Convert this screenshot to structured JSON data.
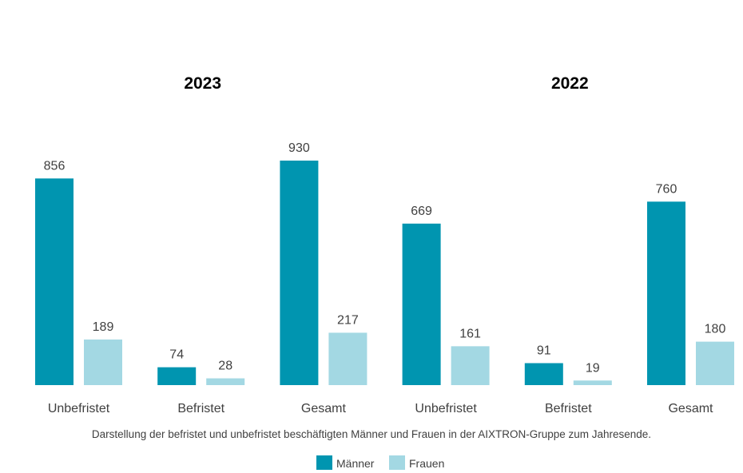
{
  "chart_data": {
    "type": "bar",
    "groups": [
      "2023",
      "2022"
    ],
    "categories": [
      "Unbefristet",
      "Befristet",
      "Gesamt",
      "Unbefristet",
      "Befristet",
      "Gesamt"
    ],
    "series": [
      {
        "name": "Männer",
        "color": "#0095B0",
        "values": [
          856,
          74,
          930,
          669,
          91,
          760
        ]
      },
      {
        "name": "Frauen",
        "color": "#A3D8E3",
        "values": [
          189,
          28,
          217,
          161,
          19,
          180
        ]
      }
    ],
    "caption": "Darstellung der befristet und unbefristet beschäftigten Männer und Frauen in der AIXTRON-Gruppe zum Jahresende.",
    "legend_position": "bottom-center",
    "ylim": [
      0,
      930
    ],
    "grid": false
  }
}
